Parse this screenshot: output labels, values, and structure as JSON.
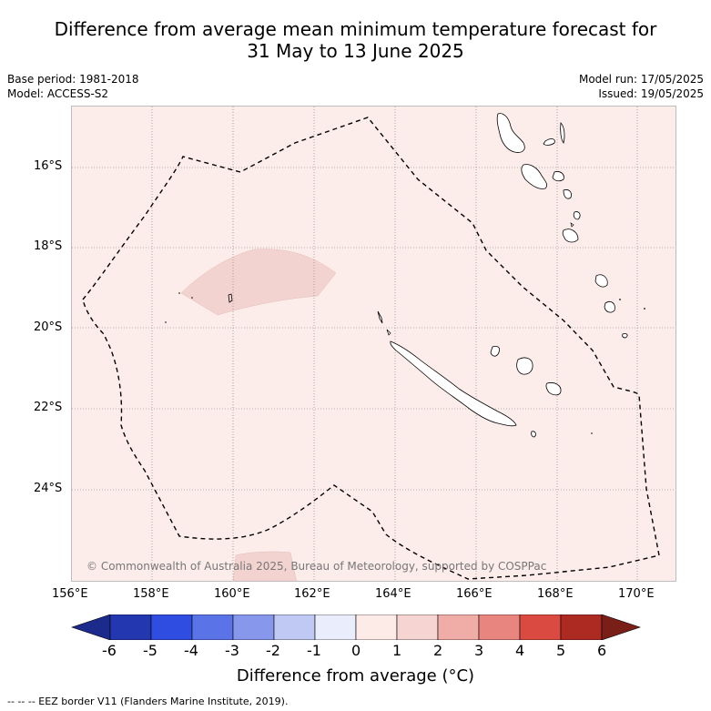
{
  "title_line1": "Difference from average mean minimum temperature forecast for",
  "title_line2": "31 May to 13 June 2025",
  "base_period": "Base period: 1981-2018",
  "model": "Model: ACCESS-S2",
  "model_run": "Model run: 17/05/2025",
  "issued": "Issued: 19/05/2025",
  "copyright": "© Commonwealth of Australia 2025, Bureau of Meteorology, supported by COSPPac",
  "lat_labels": [
    "16°S",
    "18°S",
    "20°S",
    "22°S",
    "24°S"
  ],
  "lon_labels": [
    "156°E",
    "158°E",
    "160°E",
    "162°E",
    "164°E",
    "166°E",
    "168°E",
    "170°E"
  ],
  "colorbar": {
    "ticks": [
      "-6",
      "-5",
      "-4",
      "-3",
      "-2",
      "-1",
      "0",
      "1",
      "2",
      "3",
      "4",
      "5",
      "6"
    ],
    "title": "Difference from average (°C)",
    "colors": [
      "#1c2a8c",
      "#2237b0",
      "#2f4de0",
      "#5a73e6",
      "#8798ec",
      "#c0c8f4",
      "#eaedfb",
      "#fdebe8",
      "#f6d4d1",
      "#f0aca6",
      "#e8857e",
      "#db4a40",
      "#ad2a22",
      "#7a1e18"
    ]
  },
  "footnote": "--  --  -- EEZ border V11 (Flanders Marine Institute, 2019)."
}
